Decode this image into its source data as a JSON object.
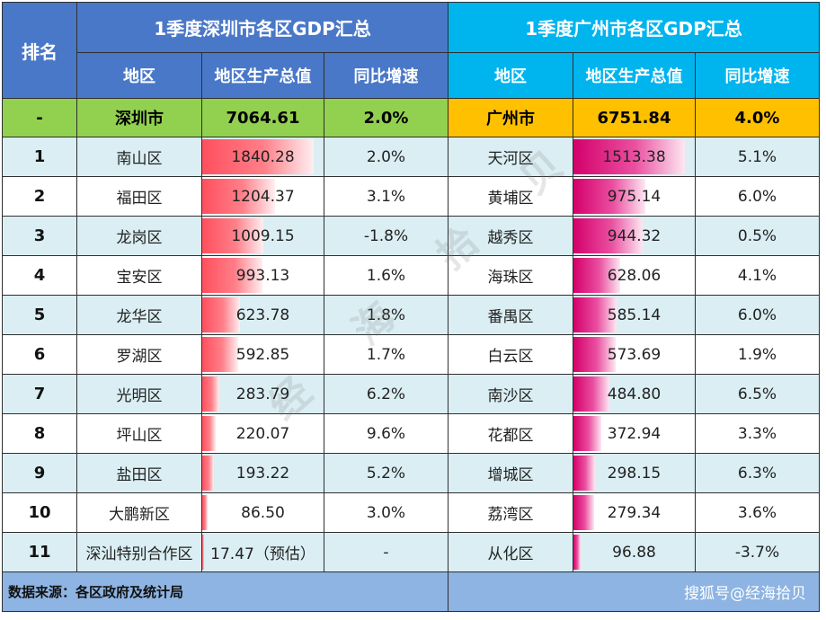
{
  "rank_header": "排名",
  "shenzhen": {
    "title": "1季度深圳市各区GDP汇总",
    "columns": {
      "district": "地区",
      "gdp": "地区生产总值",
      "growth": "同比增速"
    },
    "total": {
      "rank": "-",
      "district": "深圳市",
      "gdp": "7064.61",
      "growth": "2.0%"
    },
    "bar_color": "#ff4f5e",
    "rows": [
      {
        "rank": "1",
        "district": "南山区",
        "gdp": "1840.28",
        "gdp_value": 1840.28,
        "growth": "2.0%"
      },
      {
        "rank": "2",
        "district": "福田区",
        "gdp": "1204.37",
        "gdp_value": 1204.37,
        "growth": "3.1%"
      },
      {
        "rank": "3",
        "district": "龙岗区",
        "gdp": "1009.15",
        "gdp_value": 1009.15,
        "growth": "-1.8%"
      },
      {
        "rank": "4",
        "district": "宝安区",
        "gdp": "993.13",
        "gdp_value": 993.13,
        "growth": "1.6%"
      },
      {
        "rank": "5",
        "district": "龙华区",
        "gdp": "623.78",
        "gdp_value": 623.78,
        "growth": "1.8%"
      },
      {
        "rank": "6",
        "district": "罗湖区",
        "gdp": "592.85",
        "gdp_value": 592.85,
        "growth": "1.7%"
      },
      {
        "rank": "7",
        "district": "光明区",
        "gdp": "283.79",
        "gdp_value": 283.79,
        "growth": "6.2%"
      },
      {
        "rank": "8",
        "district": "坪山区",
        "gdp": "220.07",
        "gdp_value": 220.07,
        "growth": "9.6%"
      },
      {
        "rank": "9",
        "district": "盐田区",
        "gdp": "193.22",
        "gdp_value": 193.22,
        "growth": "5.2%"
      },
      {
        "rank": "10",
        "district": "大鹏新区",
        "gdp": "86.50",
        "gdp_value": 86.5,
        "growth": "3.0%"
      },
      {
        "rank": "11",
        "district": "深汕特别合作区",
        "gdp": "17.47（预估）",
        "gdp_value": 17.47,
        "growth": "-"
      }
    ]
  },
  "guangzhou": {
    "title": "1季度广州市各区GDP汇总",
    "columns": {
      "district": "地区",
      "gdp": "地区生产总值",
      "growth": "同比增速"
    },
    "total": {
      "district": "广州市",
      "gdp": "6751.84",
      "growth": "4.0%"
    },
    "bar_color": "#d4006b",
    "rows": [
      {
        "district": "天河区",
        "gdp": "1513.38",
        "gdp_value": 1513.38,
        "growth": "5.1%"
      },
      {
        "district": "黄埔区",
        "gdp": "975.14",
        "gdp_value": 975.14,
        "growth": "6.0%"
      },
      {
        "district": "越秀区",
        "gdp": "944.32",
        "gdp_value": 944.32,
        "growth": "0.5%"
      },
      {
        "district": "海珠区",
        "gdp": "628.06",
        "gdp_value": 628.06,
        "growth": "4.1%"
      },
      {
        "district": "番禺区",
        "gdp": "585.14",
        "gdp_value": 585.14,
        "growth": "6.0%"
      },
      {
        "district": "白云区",
        "gdp": "573.69",
        "gdp_value": 573.69,
        "growth": "1.9%"
      },
      {
        "district": "南沙区",
        "gdp": "484.80",
        "gdp_value": 484.8,
        "growth": "6.5%"
      },
      {
        "district": "花都区",
        "gdp": "372.94",
        "gdp_value": 372.94,
        "growth": "3.3%"
      },
      {
        "district": "增城区",
        "gdp": "298.15",
        "gdp_value": 298.15,
        "growth": "6.3%"
      },
      {
        "district": "荔湾区",
        "gdp": "279.34",
        "gdp_value": 279.34,
        "growth": "3.6%"
      },
      {
        "district": "从化区",
        "gdp": "96.88",
        "gdp_value": 96.88,
        "growth": "-3.7%"
      }
    ]
  },
  "footer": {
    "source": "数据来源：各区政府及统计局",
    "credit": "搜狐号@经海拾贝"
  },
  "watermark": [
    "经",
    "海",
    "拾",
    "贝"
  ]
}
